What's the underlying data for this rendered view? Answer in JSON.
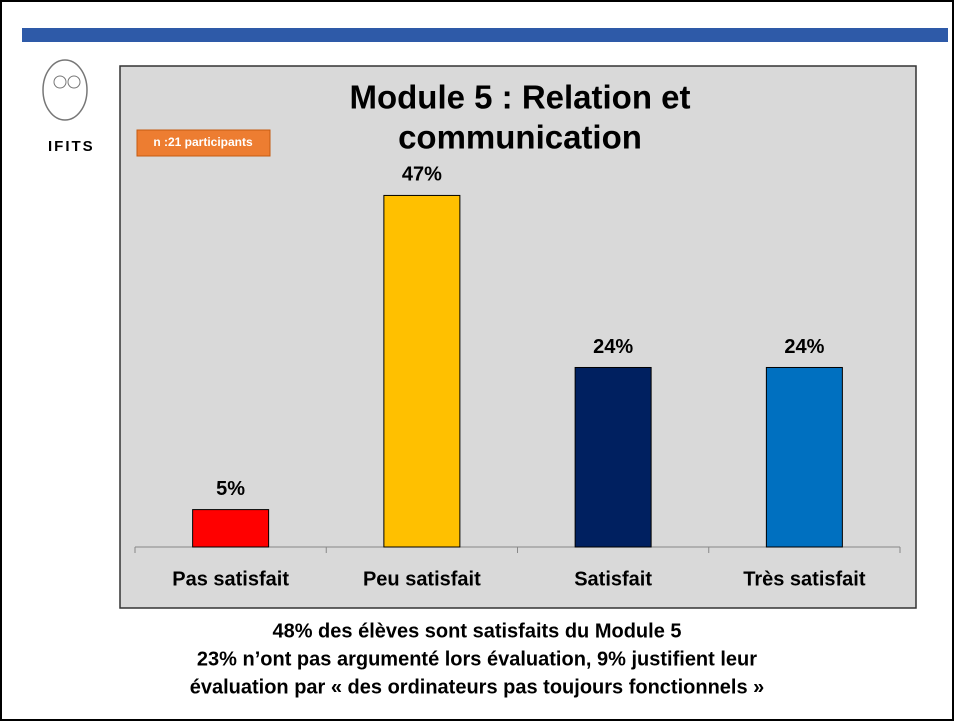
{
  "logo": {
    "text": "IFITS"
  },
  "chart_data": {
    "type": "bar",
    "title": [
      "Module 5 : Relation et",
      "communication"
    ],
    "annotation": "n :21 participants",
    "categories": [
      "Pas satisfait",
      "Peu satisfait",
      "Satisfait",
      "Très satisfait"
    ],
    "values": [
      5,
      47,
      24,
      24
    ],
    "value_labels": [
      "5%",
      "47%",
      "24%",
      "24%"
    ],
    "colors": [
      "#ff0000",
      "#ffc000",
      "#002060",
      "#0070c0"
    ],
    "ylim": [
      0,
      50
    ]
  },
  "footer": [
    "48% des élèves sont satisfaits du Module 5",
    "23% n’ont pas argumenté lors évaluation, 9% justifient leur",
    "évaluation par « des ordinateurs pas toujours fonctionnels »"
  ]
}
